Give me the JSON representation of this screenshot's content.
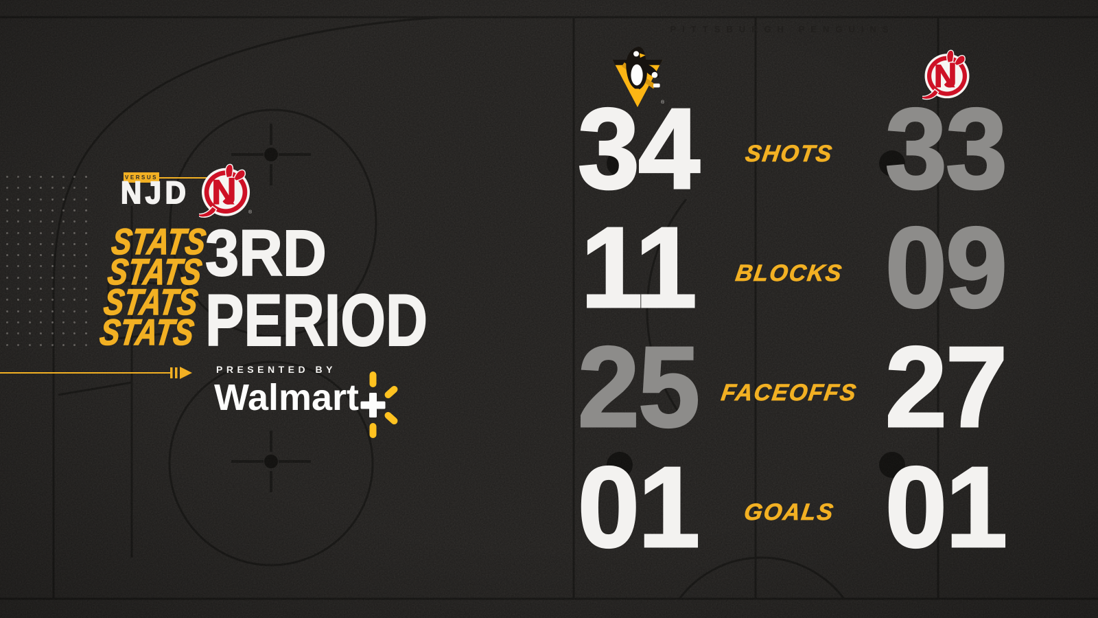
{
  "teams": {
    "home": {
      "name": "Pittsburgh Penguins",
      "abbr": "PIT",
      "color": "#fcb514"
    },
    "away": {
      "name": "New Jersey Devils",
      "abbr": "NJD",
      "color": "#ce1126"
    }
  },
  "watermark": "PITTSBURGH PENGUINS",
  "matchup": {
    "versus_label": "VERSUS",
    "opponent_abbr": "NJD",
    "registered_mark": "®"
  },
  "title": {
    "stats_repeat": [
      "STATS",
      "STATS",
      "STATS",
      "STATS"
    ],
    "line1": "3RD",
    "line2": "PERIOD"
  },
  "sponsor": {
    "presented_by": "PRESENTED BY",
    "name": "Walmart",
    "plus": "+"
  },
  "chart_data": {
    "type": "table",
    "title": "3rd Period Stats — Pittsburgh Penguins vs New Jersey Devils",
    "categories": [
      "SHOTS",
      "BLOCKS",
      "FACEOFFS",
      "GOALS"
    ],
    "series": [
      {
        "name": "Pittsburgh Penguins",
        "values": [
          34,
          11,
          25,
          1
        ]
      },
      {
        "name": "New Jersey Devils",
        "values": [
          33,
          9,
          27,
          1
        ]
      }
    ],
    "display": {
      "rows": [
        {
          "label": "SHOTS",
          "left": "34",
          "right": "33",
          "left_style": "win",
          "right_style": "lose"
        },
        {
          "label": "BLOCKS",
          "left": "11",
          "right": "09",
          "left_style": "win",
          "right_style": "lose"
        },
        {
          "label": "FACEOFFS",
          "left": "25",
          "right": "27",
          "left_style": "lose",
          "right_style": "win"
        },
        {
          "label": "GOALS",
          "left": "01",
          "right": "01",
          "left_style": "win",
          "right_style": "win"
        }
      ]
    },
    "legend_position": "none",
    "grid": "off"
  },
  "colors": {
    "background": "#2f2d2b",
    "rink_lines": "#1f1e1c",
    "accent_gold": "#f2b023",
    "walmart_spark": "#ffc220",
    "winner_number": "#f3f2f0",
    "loser_number": "#8d8c8a",
    "devils_red": "#ce1126",
    "penguins_gold": "#fcb514"
  }
}
